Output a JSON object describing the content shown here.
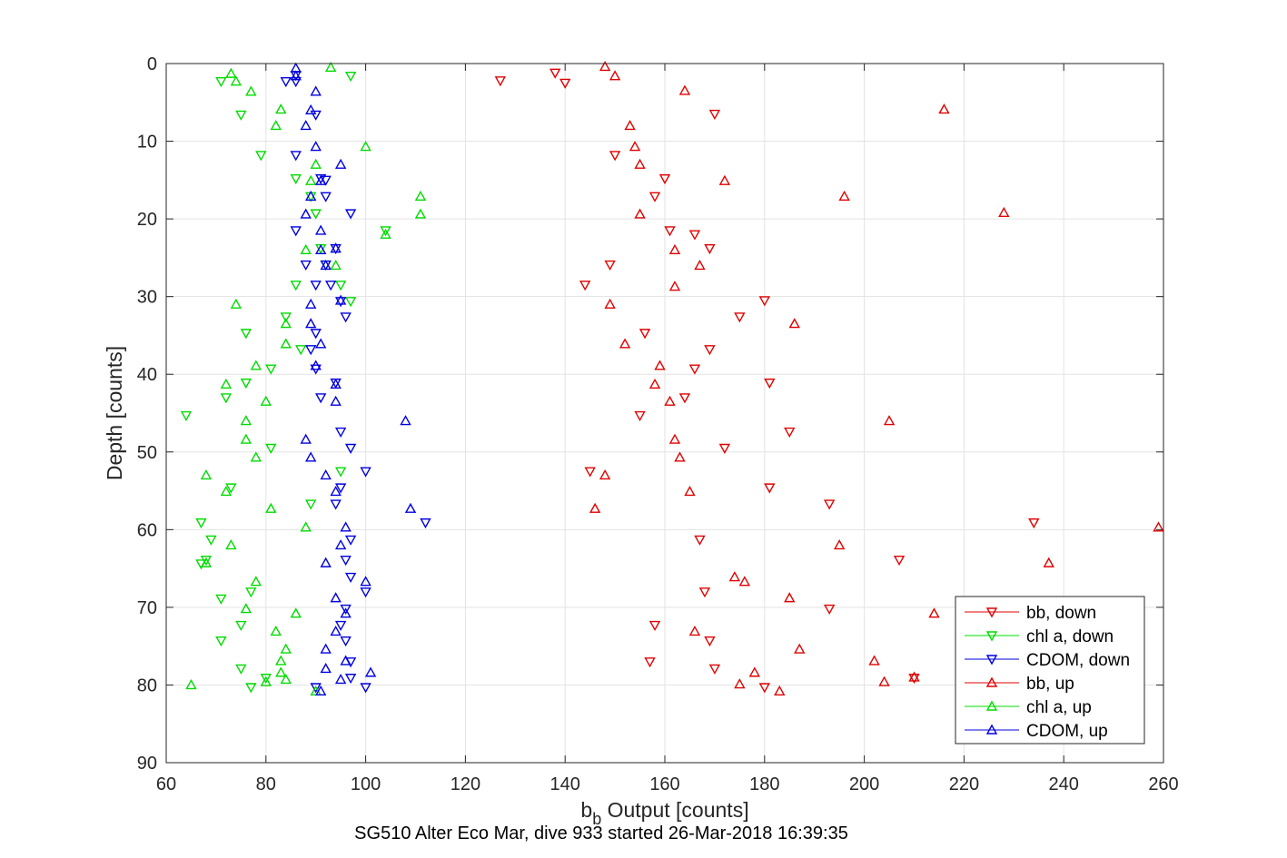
{
  "chart_data": {
    "type": "scatter",
    "title": "SG510 Alter Eco Mar, dive 933 started 26-Mar-2018 16:39:35",
    "xlabel_main": "b",
    "xlabel_sub": "b",
    "xlabel_rest": " Output [counts]",
    "ylabel": "Depth [counts]",
    "xlim": [
      60,
      260
    ],
    "ylim": [
      0,
      90
    ],
    "y_reversed": true,
    "grid": true,
    "legend_position": "bottom-right",
    "xticks": [
      "60",
      "80",
      "100",
      "120",
      "140",
      "160",
      "180",
      "200",
      "220",
      "240",
      "260"
    ],
    "yticks": [
      "0",
      "10",
      "20",
      "30",
      "40",
      "50",
      "60",
      "70",
      "80",
      "90"
    ],
    "series": [
      {
        "name": "bb, down",
        "color": "#e00000",
        "marker": "triangle-down",
        "points": [
          [
            138,
            1.2
          ],
          [
            127,
            2.2
          ],
          [
            140,
            2.5
          ],
          [
            170,
            6.5
          ],
          [
            150,
            11.8
          ],
          [
            160,
            14.8
          ],
          [
            158,
            17.1
          ],
          [
            161,
            21.5
          ],
          [
            166,
            22
          ],
          [
            169,
            23.8
          ],
          [
            149,
            25.9
          ],
          [
            144,
            28.5
          ],
          [
            180,
            30.5
          ],
          [
            175,
            32.6
          ],
          [
            156,
            34.7
          ],
          [
            169,
            36.8
          ],
          [
            166,
            39.3
          ],
          [
            181,
            41.1
          ],
          [
            164,
            43
          ],
          [
            155,
            45.3
          ],
          [
            185,
            47.4
          ],
          [
            172,
            49.5
          ],
          [
            145,
            52.5
          ],
          [
            181,
            54.6
          ],
          [
            193,
            56.7
          ],
          [
            234,
            59.1
          ],
          [
            167,
            61.3
          ],
          [
            207,
            63.9
          ],
          [
            168,
            68
          ],
          [
            193,
            70.2
          ],
          [
            158,
            72.3
          ],
          [
            169,
            74.3
          ],
          [
            157,
            77
          ],
          [
            170,
            77.9
          ],
          [
            210,
            79.1
          ],
          [
            180,
            80.3
          ]
        ]
      },
      {
        "name": "chl a, down",
        "color": "#00dc00",
        "marker": "triangle-down",
        "points": [
          [
            71,
            2.3
          ],
          [
            97,
            1.6
          ],
          [
            75,
            6.6
          ],
          [
            79,
            11.8
          ],
          [
            86,
            14.8
          ],
          [
            89,
            17.1
          ],
          [
            90,
            19.3
          ],
          [
            104,
            21.5
          ],
          [
            91,
            23.8
          ],
          [
            92,
            25.9
          ],
          [
            86,
            28.5
          ],
          [
            95,
            28.5
          ],
          [
            97,
            30.6
          ],
          [
            84,
            32.6
          ],
          [
            76,
            34.7
          ],
          [
            87,
            36.8
          ],
          [
            81,
            39.3
          ],
          [
            76,
            41.1
          ],
          [
            72,
            43
          ],
          [
            64,
            45.3
          ],
          [
            81,
            49.5
          ],
          [
            95,
            52.5
          ],
          [
            73,
            54.6
          ],
          [
            89,
            56.7
          ],
          [
            67,
            59.1
          ],
          [
            69,
            61.3
          ],
          [
            68,
            63.9
          ],
          [
            67,
            64.4
          ],
          [
            77,
            68
          ],
          [
            71,
            68.9
          ],
          [
            75,
            72.3
          ],
          [
            71,
            74.3
          ],
          [
            75,
            77.9
          ],
          [
            80,
            79.1
          ],
          [
            77,
            80.3
          ]
        ]
      },
      {
        "name": "CDOM, down",
        "color": "#0000e0",
        "marker": "triangle-down",
        "points": [
          [
            86,
            1.5
          ],
          [
            86,
            2.3
          ],
          [
            84,
            2.3
          ],
          [
            90,
            6.6
          ],
          [
            86,
            11.8
          ],
          [
            91,
            14.8
          ],
          [
            92,
            15
          ],
          [
            92,
            17.1
          ],
          [
            97,
            19.3
          ],
          [
            86,
            21.5
          ],
          [
            94,
            23.8
          ],
          [
            88,
            25.9
          ],
          [
            92,
            25.9
          ],
          [
            93,
            28.5
          ],
          [
            90,
            28.5
          ],
          [
            95,
            30.6
          ],
          [
            96,
            32.6
          ],
          [
            90,
            34.7
          ],
          [
            89,
            36.8
          ],
          [
            90,
            39.3
          ],
          [
            94,
            41.1
          ],
          [
            91,
            43
          ],
          [
            95,
            47.4
          ],
          [
            97,
            49.5
          ],
          [
            100,
            52.5
          ],
          [
            95,
            54.6
          ],
          [
            94,
            56.7
          ],
          [
            112,
            59.1
          ],
          [
            97,
            61.3
          ],
          [
            96,
            63.9
          ],
          [
            97,
            66.1
          ],
          [
            100,
            68
          ],
          [
            96,
            70.2
          ],
          [
            95,
            72.3
          ],
          [
            96,
            74.3
          ],
          [
            97,
            77
          ],
          [
            90,
            80.3
          ],
          [
            100,
            80.3
          ],
          [
            97,
            79.1
          ]
        ]
      },
      {
        "name": "bb, up",
        "color": "#e00000",
        "marker": "triangle-up",
        "points": [
          [
            148,
            0.4
          ],
          [
            150,
            1.6
          ],
          [
            164,
            3.5
          ],
          [
            216,
            5.9
          ],
          [
            153,
            8
          ],
          [
            154,
            10.7
          ],
          [
            155,
            13
          ],
          [
            172,
            15.1
          ],
          [
            196,
            17.1
          ],
          [
            155,
            19.4
          ],
          [
            228,
            19.2
          ],
          [
            167,
            26
          ],
          [
            162,
            24
          ],
          [
            162,
            28.7
          ],
          [
            149,
            31
          ],
          [
            186,
            33.5
          ],
          [
            152,
            36.1
          ],
          [
            159,
            38.9
          ],
          [
            158,
            41.3
          ],
          [
            161,
            43.5
          ],
          [
            205,
            46
          ],
          [
            162,
            48.4
          ],
          [
            163,
            50.7
          ],
          [
            148,
            53
          ],
          [
            165,
            55.1
          ],
          [
            146,
            57.3
          ],
          [
            259,
            59.7
          ],
          [
            195,
            62
          ],
          [
            237,
            64.3
          ],
          [
            174,
            66.1
          ],
          [
            176,
            66.7
          ],
          [
            185,
            68.8
          ],
          [
            214,
            70.8
          ],
          [
            166,
            73.1
          ],
          [
            187,
            75.4
          ],
          [
            202,
            76.9
          ],
          [
            178,
            78.4
          ],
          [
            175,
            79.9
          ],
          [
            204,
            79.6
          ],
          [
            210,
            79
          ],
          [
            183,
            80.8
          ]
        ]
      },
      {
        "name": "chl a, up",
        "color": "#00dc00",
        "marker": "triangle-up",
        "points": [
          [
            93,
            0.5
          ],
          [
            73,
            1.3
          ],
          [
            74,
            2.3
          ],
          [
            77,
            3.6
          ],
          [
            83,
            5.9
          ],
          [
            82,
            8
          ],
          [
            100,
            10.7
          ],
          [
            90,
            13
          ],
          [
            89,
            15.1
          ],
          [
            111,
            17.1
          ],
          [
            111,
            19.4
          ],
          [
            104,
            22
          ],
          [
            88,
            24
          ],
          [
            94,
            26
          ],
          [
            74,
            31
          ],
          [
            84,
            33.5
          ],
          [
            84,
            36.1
          ],
          [
            78,
            38.9
          ],
          [
            72,
            41.3
          ],
          [
            80,
            43.5
          ],
          [
            76,
            46
          ],
          [
            76,
            48.4
          ],
          [
            78,
            50.7
          ],
          [
            68,
            53
          ],
          [
            72,
            55.1
          ],
          [
            81,
            57.3
          ],
          [
            88,
            59.7
          ],
          [
            73,
            62
          ],
          [
            68,
            64.3
          ],
          [
            78,
            66.7
          ],
          [
            76,
            70.2
          ],
          [
            86,
            70.8
          ],
          [
            82,
            73.1
          ],
          [
            84,
            75.4
          ],
          [
            83,
            76.9
          ],
          [
            83,
            78.4
          ],
          [
            84,
            79.3
          ],
          [
            80,
            79.6
          ],
          [
            65,
            80
          ],
          [
            90,
            80.8
          ]
        ]
      },
      {
        "name": "CDOM, up",
        "color": "#0000e0",
        "marker": "triangle-up",
        "points": [
          [
            86,
            0.6
          ],
          [
            86,
            1.6
          ],
          [
            90,
            3.6
          ],
          [
            89,
            6
          ],
          [
            88,
            8
          ],
          [
            90,
            10.7
          ],
          [
            95,
            13
          ],
          [
            91,
            15.1
          ],
          [
            89,
            17.1
          ],
          [
            88,
            19.4
          ],
          [
            91,
            21.5
          ],
          [
            91,
            24
          ],
          [
            94,
            23.8
          ],
          [
            92,
            26
          ],
          [
            89,
            31
          ],
          [
            95,
            30.5
          ],
          [
            89,
            33.5
          ],
          [
            91,
            36.1
          ],
          [
            90,
            38.9
          ],
          [
            94,
            41.3
          ],
          [
            94,
            43.5
          ],
          [
            108,
            46
          ],
          [
            88,
            48.4
          ],
          [
            89,
            50.7
          ],
          [
            92,
            53
          ],
          [
            94,
            55.1
          ],
          [
            109,
            57.3
          ],
          [
            96,
            59.7
          ],
          [
            95,
            62
          ],
          [
            92,
            64.3
          ],
          [
            100,
            66.7
          ],
          [
            94,
            68.8
          ],
          [
            96,
            70.8
          ],
          [
            94,
            73.1
          ],
          [
            92,
            75.4
          ],
          [
            96,
            76.9
          ],
          [
            101,
            78.4
          ],
          [
            95,
            79.3
          ],
          [
            91,
            80.8
          ],
          [
            92,
            77.9
          ]
        ]
      }
    ]
  }
}
